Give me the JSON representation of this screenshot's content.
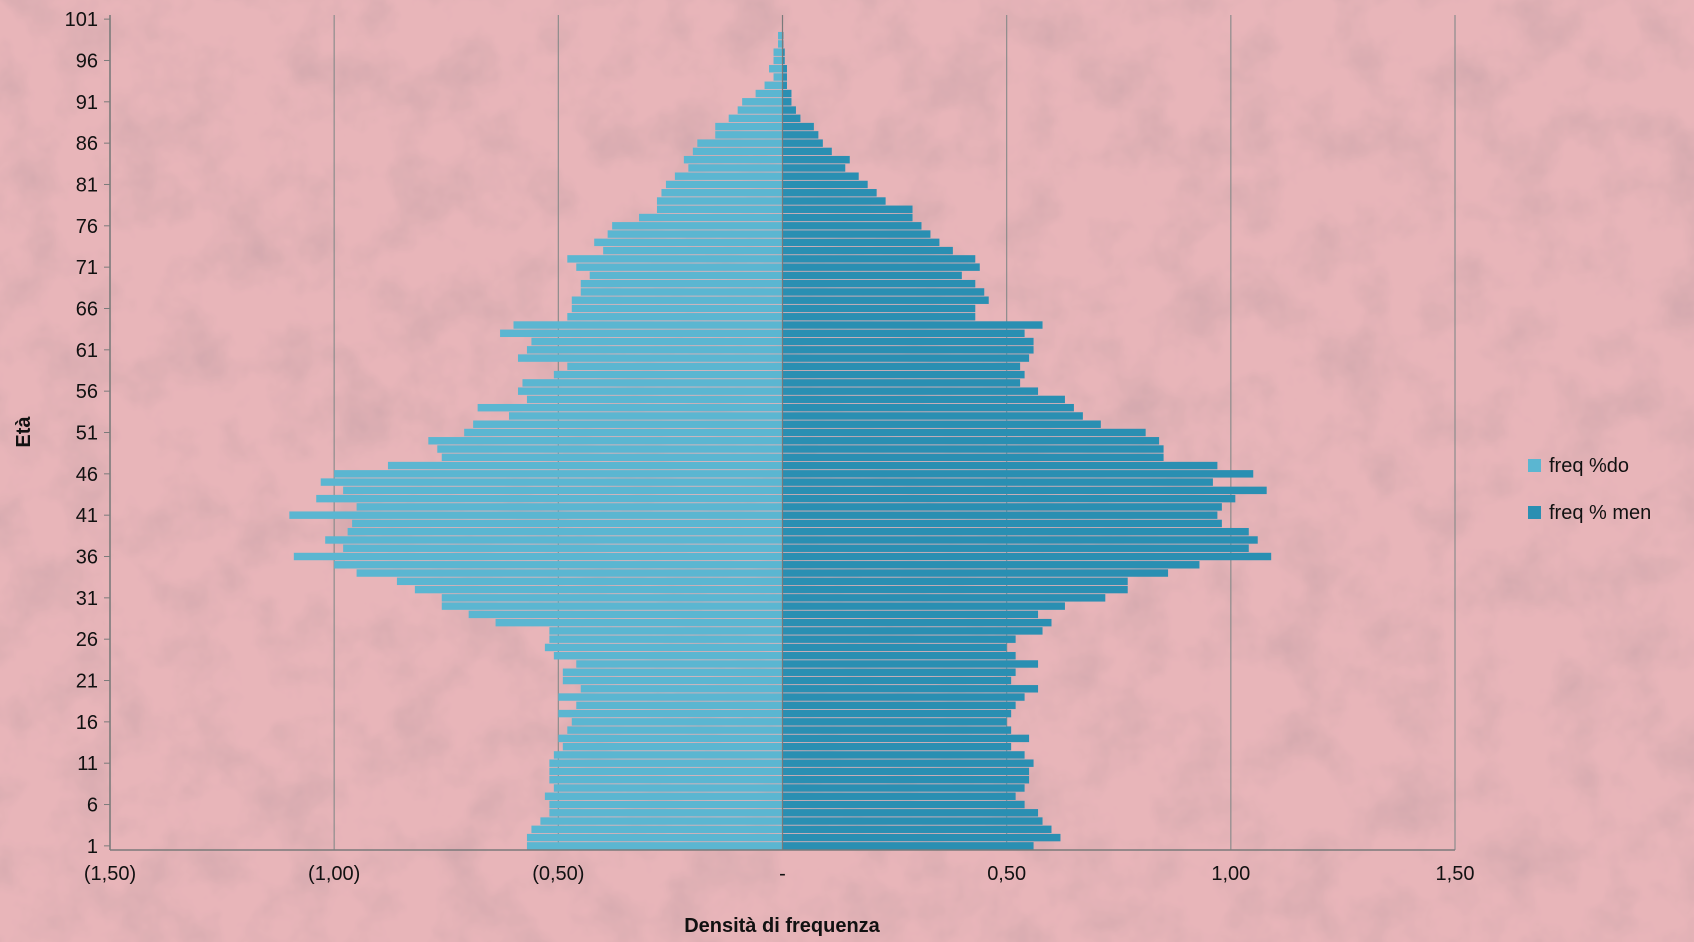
{
  "chart_data": {
    "type": "bar",
    "orientation": "horizontal",
    "subtype": "population-pyramid",
    "xlabel": "Densità di frequenza",
    "ylabel": "Età",
    "xlim": [
      -1.5,
      1.5
    ],
    "x_ticks": [
      {
        "value": -1.5,
        "label": "(1,50)"
      },
      {
        "value": -1.0,
        "label": "(1,00)"
      },
      {
        "value": -0.5,
        "label": "(0,50)"
      },
      {
        "value": 0,
        "label": "-"
      },
      {
        "value": 0.5,
        "label": "0,50"
      },
      {
        "value": 1.0,
        "label": "1,00"
      },
      {
        "value": 1.5,
        "label": "1,50"
      }
    ],
    "y_tick_labels": [
      "1",
      "6",
      "11",
      "16",
      "21",
      "26",
      "31",
      "36",
      "41",
      "46",
      "51",
      "56",
      "61",
      "66",
      "71",
      "76",
      "81",
      "86",
      "91",
      "96",
      "101"
    ],
    "grid": "vertical",
    "legend_position": "right",
    "categories": [
      1,
      2,
      3,
      4,
      5,
      6,
      7,
      8,
      9,
      10,
      11,
      12,
      13,
      14,
      15,
      16,
      17,
      18,
      19,
      20,
      21,
      22,
      23,
      24,
      25,
      26,
      27,
      28,
      29,
      30,
      31,
      32,
      33,
      34,
      35,
      36,
      37,
      38,
      39,
      40,
      41,
      42,
      43,
      44,
      45,
      46,
      47,
      48,
      49,
      50,
      51,
      52,
      53,
      54,
      55,
      56,
      57,
      58,
      59,
      60,
      61,
      62,
      63,
      64,
      65,
      66,
      67,
      68,
      69,
      70,
      71,
      72,
      73,
      74,
      75,
      76,
      77,
      78,
      79,
      80,
      81,
      82,
      83,
      84,
      85,
      86,
      87,
      88,
      89,
      90,
      91,
      92,
      93,
      94,
      95,
      96,
      97,
      98,
      99,
      100,
      101
    ],
    "series": [
      {
        "name": "freq %do",
        "color": "#5bb6d1",
        "values": [
          -0.57,
          -0.57,
          -0.56,
          -0.54,
          -0.52,
          -0.52,
          -0.53,
          -0.51,
          -0.52,
          -0.52,
          -0.52,
          -0.51,
          -0.49,
          -0.5,
          -0.48,
          -0.47,
          -0.5,
          -0.46,
          -0.5,
          -0.45,
          -0.49,
          -0.49,
          -0.46,
          -0.51,
          -0.53,
          -0.52,
          -0.52,
          -0.64,
          -0.7,
          -0.76,
          -0.76,
          -0.82,
          -0.86,
          -0.95,
          -1.0,
          -1.09,
          -0.98,
          -1.02,
          -0.97,
          -0.96,
          -1.1,
          -0.95,
          -1.04,
          -0.98,
          -1.03,
          -1.0,
          -0.88,
          -0.76,
          -0.77,
          -0.79,
          -0.71,
          -0.69,
          -0.61,
          -0.68,
          -0.57,
          -0.59,
          -0.58,
          -0.51,
          -0.48,
          -0.59,
          -0.57,
          -0.56,
          -0.63,
          -0.6,
          -0.48,
          -0.47,
          -0.47,
          -0.45,
          -0.45,
          -0.43,
          -0.46,
          -0.48,
          -0.4,
          -0.42,
          -0.39,
          -0.38,
          -0.32,
          -0.28,
          -0.28,
          -0.27,
          -0.26,
          -0.24,
          -0.21,
          -0.22,
          -0.2,
          -0.19,
          -0.15,
          -0.15,
          -0.12,
          -0.1,
          -0.09,
          -0.06,
          -0.04,
          -0.02,
          -0.03,
          -0.02,
          -0.02,
          -0.01,
          -0.01,
          0,
          -0.001
        ]
      },
      {
        "name": "freq % men",
        "color": "#2a8fb2",
        "values": [
          0.56,
          0.62,
          0.6,
          0.58,
          0.57,
          0.54,
          0.52,
          0.54,
          0.55,
          0.55,
          0.56,
          0.54,
          0.51,
          0.55,
          0.51,
          0.5,
          0.51,
          0.52,
          0.54,
          0.57,
          0.51,
          0.52,
          0.57,
          0.52,
          0.5,
          0.52,
          0.58,
          0.6,
          0.57,
          0.63,
          0.72,
          0.77,
          0.77,
          0.86,
          0.93,
          1.09,
          1.04,
          1.06,
          1.04,
          0.98,
          0.97,
          0.98,
          1.01,
          1.08,
          0.96,
          1.05,
          0.97,
          0.85,
          0.85,
          0.84,
          0.81,
          0.71,
          0.67,
          0.65,
          0.63,
          0.57,
          0.53,
          0.54,
          0.53,
          0.55,
          0.56,
          0.56,
          0.54,
          0.58,
          0.43,
          0.43,
          0.46,
          0.45,
          0.43,
          0.4,
          0.44,
          0.43,
          0.38,
          0.35,
          0.33,
          0.31,
          0.29,
          0.29,
          0.23,
          0.21,
          0.19,
          0.17,
          0.14,
          0.15,
          0.11,
          0.09,
          0.08,
          0.07,
          0.04,
          0.03,
          0.02,
          0.02,
          0.01,
          0.01,
          0.01,
          0.005,
          0.005,
          0.002,
          0.002,
          0.001,
          0.001
        ]
      }
    ]
  }
}
